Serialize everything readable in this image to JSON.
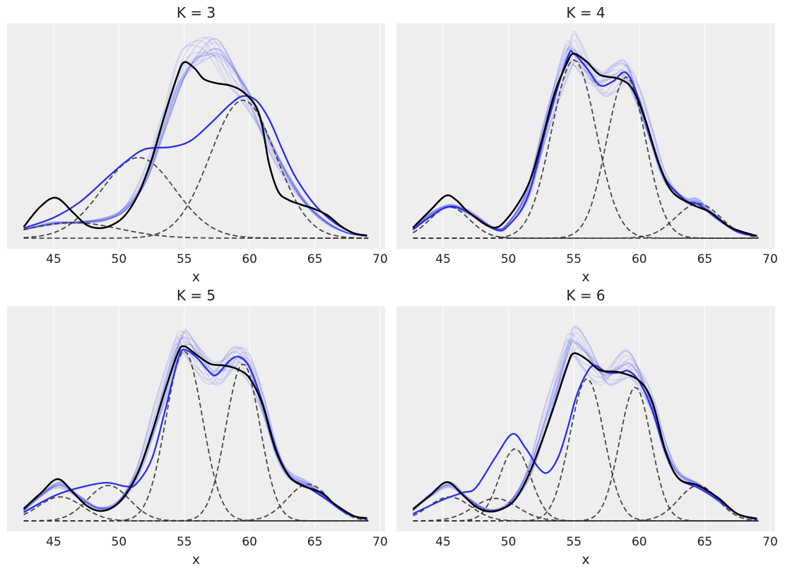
{
  "colors": {
    "background": "#eeeeee",
    "grid": "#ffffff",
    "mean": "#000000",
    "sample": "#2a2eec",
    "ensemble": "#2a2eec",
    "component": "#333333"
  },
  "chart_data": [
    {
      "type": "line",
      "title": "K = 3",
      "xlabel": "x",
      "ylabel": "",
      "xlim": [
        41.43,
        70.38
      ],
      "ylim": [
        -0.05,
        1.013
      ],
      "grid": "vertical",
      "xticks": [
        45,
        50,
        55,
        60,
        65,
        70
      ],
      "xtick_labels": [
        "45",
        "50",
        "55",
        "60",
        "65",
        "70"
      ],
      "yticks": [],
      "mean": [
        [
          42.7,
          0.053
        ],
        [
          44,
          0.15
        ],
        [
          45.2,
          0.19
        ],
        [
          46.5,
          0.12
        ],
        [
          47.5,
          0.063
        ],
        [
          48.5,
          0.047
        ],
        [
          49.5,
          0.063
        ],
        [
          50.5,
          0.11
        ],
        [
          51.5,
          0.21
        ],
        [
          52.5,
          0.37
        ],
        [
          53.5,
          0.58
        ],
        [
          54.5,
          0.77
        ],
        [
          55,
          0.83
        ],
        [
          55.8,
          0.8
        ],
        [
          56.5,
          0.75
        ],
        [
          57.5,
          0.73
        ],
        [
          58.5,
          0.72
        ],
        [
          59.5,
          0.69
        ],
        [
          60.5,
          0.62
        ],
        [
          61,
          0.52
        ],
        [
          61.5,
          0.35
        ],
        [
          62.2,
          0.22
        ],
        [
          63,
          0.18
        ],
        [
          64,
          0.157
        ],
        [
          65,
          0.137
        ],
        [
          66,
          0.107
        ],
        [
          67,
          0.057
        ],
        [
          68,
          0.023
        ],
        [
          69,
          0.013
        ]
      ],
      "sample": [
        [
          42.7,
          0.047
        ],
        [
          45,
          0.097
        ],
        [
          47,
          0.17
        ],
        [
          49,
          0.28
        ],
        [
          50.5,
          0.36
        ],
        [
          52,
          0.42
        ],
        [
          54,
          0.43
        ],
        [
          55.5,
          0.46
        ],
        [
          57,
          0.54
        ],
        [
          58.5,
          0.63
        ],
        [
          59.5,
          0.67
        ],
        [
          60.5,
          0.65
        ],
        [
          61.5,
          0.56
        ],
        [
          62.5,
          0.42
        ],
        [
          63.5,
          0.29
        ],
        [
          65,
          0.157
        ],
        [
          66.5,
          0.073
        ],
        [
          68,
          0.023
        ],
        [
          69,
          0.01
        ]
      ],
      "ensemble": [
        [
          42.7,
          0.04
        ],
        [
          45,
          0.07
        ],
        [
          47,
          0.075
        ],
        [
          49,
          0.09
        ],
        [
          50.5,
          0.14
        ],
        [
          52,
          0.28
        ],
        [
          53.5,
          0.55
        ],
        [
          55,
          0.8
        ],
        [
          56.5,
          0.88
        ],
        [
          57.5,
          0.88
        ],
        [
          58.5,
          0.8
        ],
        [
          60,
          0.65
        ],
        [
          61.5,
          0.45
        ],
        [
          63,
          0.28
        ],
        [
          64.5,
          0.15
        ],
        [
          66,
          0.07
        ],
        [
          67.5,
          0.025
        ],
        [
          69,
          0.01
        ]
      ],
      "components": [
        {
          "mean": 46.5,
          "peak": 0.073,
          "sd": 3.5
        },
        {
          "mean": 51.5,
          "peak": 0.38,
          "sd": 2.8
        },
        {
          "mean": 59.5,
          "peak": 0.65,
          "sd": 2.5
        }
      ]
    },
    {
      "type": "line",
      "title": "K = 4",
      "xlabel": "x",
      "ylabel": "",
      "xlim": [
        41.43,
        70.38
      ],
      "ylim": [
        -0.05,
        1.013
      ],
      "grid": "vertical",
      "xticks": [
        45,
        50,
        55,
        60,
        65,
        70
      ],
      "xtick_labels": [
        "45",
        "50",
        "55",
        "60",
        "65",
        "70"
      ],
      "yticks": [],
      "mean": [
        [
          42.7,
          0.05
        ],
        [
          44,
          0.13
        ],
        [
          45.2,
          0.2
        ],
        [
          46,
          0.18
        ],
        [
          47,
          0.12
        ],
        [
          48.8,
          0.05
        ],
        [
          50,
          0.1
        ],
        [
          51.5,
          0.25
        ],
        [
          52.5,
          0.45
        ],
        [
          53.5,
          0.68
        ],
        [
          54.5,
          0.83
        ],
        [
          55,
          0.87
        ],
        [
          56,
          0.83
        ],
        [
          57,
          0.77
        ],
        [
          58.5,
          0.75
        ],
        [
          59.5,
          0.7
        ],
        [
          60.5,
          0.55
        ],
        [
          61.5,
          0.35
        ],
        [
          62.5,
          0.22
        ],
        [
          64,
          0.16
        ],
        [
          65.5,
          0.12
        ],
        [
          67,
          0.05
        ],
        [
          69,
          0.01
        ]
      ],
      "sample": [
        [
          42.7,
          0.04
        ],
        [
          44,
          0.1
        ],
        [
          45.5,
          0.15
        ],
        [
          47,
          0.12
        ],
        [
          49,
          0.04
        ],
        [
          50,
          0.06
        ],
        [
          51.5,
          0.2
        ],
        [
          53,
          0.55
        ],
        [
          54.5,
          0.85
        ],
        [
          55,
          0.87
        ],
        [
          56,
          0.8
        ],
        [
          57,
          0.72
        ],
        [
          58,
          0.74
        ],
        [
          59,
          0.78
        ],
        [
          60,
          0.65
        ],
        [
          61,
          0.45
        ],
        [
          62,
          0.28
        ],
        [
          63.5,
          0.18
        ],
        [
          64.5,
          0.16
        ],
        [
          66,
          0.09
        ],
        [
          67.5,
          0.03
        ],
        [
          69,
          0.01
        ]
      ],
      "ensemble": [
        [
          42.7,
          0.045
        ],
        [
          44,
          0.11
        ],
        [
          45.5,
          0.15
        ],
        [
          47,
          0.12
        ],
        [
          49,
          0.045
        ],
        [
          50,
          0.07
        ],
        [
          51.5,
          0.22
        ],
        [
          53,
          0.56
        ],
        [
          54.5,
          0.86
        ],
        [
          55,
          0.88
        ],
        [
          56,
          0.8
        ],
        [
          57,
          0.73
        ],
        [
          58,
          0.76
        ],
        [
          59,
          0.78
        ],
        [
          60,
          0.64
        ],
        [
          61,
          0.45
        ],
        [
          62,
          0.28
        ],
        [
          63.5,
          0.18
        ],
        [
          64.5,
          0.17
        ],
        [
          66,
          0.09
        ],
        [
          67.5,
          0.03
        ],
        [
          69,
          0.01
        ]
      ],
      "components": [
        {
          "mean": 45.5,
          "peak": 0.147,
          "sd": 1.5
        },
        {
          "mean": 55,
          "peak": 0.84,
          "sd": 1.7
        },
        {
          "mean": 59,
          "peak": 0.76,
          "sd": 1.5
        },
        {
          "mean": 64.5,
          "peak": 0.163,
          "sd": 1.7
        }
      ]
    },
    {
      "type": "line",
      "title": "K = 5",
      "xlabel": "x",
      "ylabel": "",
      "xlim": [
        41.43,
        70.38
      ],
      "ylim": [
        -0.05,
        1.013
      ],
      "grid": "vertical",
      "xticks": [
        45,
        50,
        55,
        60,
        65,
        70
      ],
      "xtick_labels": [
        "45",
        "50",
        "55",
        "60",
        "65",
        "70"
      ],
      "yticks": [],
      "mean": [
        [
          42.7,
          0.057
        ],
        [
          44,
          0.13
        ],
        [
          45.3,
          0.197
        ],
        [
          46.5,
          0.133
        ],
        [
          47.5,
          0.073
        ],
        [
          48.5,
          0.047
        ],
        [
          49.5,
          0.063
        ],
        [
          50.5,
          0.123
        ],
        [
          51.5,
          0.233
        ],
        [
          52.5,
          0.41
        ],
        [
          53.5,
          0.61
        ],
        [
          54.5,
          0.79
        ],
        [
          55,
          0.823
        ],
        [
          56,
          0.78
        ],
        [
          57,
          0.74
        ],
        [
          58,
          0.733
        ],
        [
          59,
          0.717
        ],
        [
          60,
          0.673
        ],
        [
          61,
          0.547
        ],
        [
          62,
          0.333
        ],
        [
          63,
          0.213
        ],
        [
          64,
          0.167
        ],
        [
          65.5,
          0.133
        ],
        [
          66.5,
          0.08
        ],
        [
          68,
          0.023
        ],
        [
          69,
          0.013
        ]
      ],
      "sample": [
        [
          42.7,
          0.04
        ],
        [
          45,
          0.117
        ],
        [
          47,
          0.157
        ],
        [
          49,
          0.18
        ],
        [
          50.5,
          0.163
        ],
        [
          51.3,
          0.173
        ],
        [
          52.5,
          0.29
        ],
        [
          53.5,
          0.513
        ],
        [
          54.5,
          0.757
        ],
        [
          55,
          0.807
        ],
        [
          56,
          0.767
        ],
        [
          57,
          0.697
        ],
        [
          57.5,
          0.69
        ],
        [
          58.5,
          0.757
        ],
        [
          59.2,
          0.773
        ],
        [
          60,
          0.723
        ],
        [
          61,
          0.557
        ],
        [
          62,
          0.347
        ],
        [
          63,
          0.213
        ],
        [
          64.5,
          0.157
        ],
        [
          66,
          0.097
        ],
        [
          67.5,
          0.033
        ],
        [
          69,
          0.007
        ]
      ],
      "ensemble": [
        [
          42.7,
          0.05
        ],
        [
          44,
          0.12
        ],
        [
          45.5,
          0.17
        ],
        [
          47,
          0.11
        ],
        [
          48.5,
          0.06
        ],
        [
          50,
          0.09
        ],
        [
          51.5,
          0.24
        ],
        [
          53,
          0.52
        ],
        [
          54.5,
          0.82
        ],
        [
          55,
          0.85
        ],
        [
          56,
          0.78
        ],
        [
          57.3,
          0.69
        ],
        [
          58.5,
          0.75
        ],
        [
          59.2,
          0.77
        ],
        [
          60,
          0.72
        ],
        [
          61,
          0.55
        ],
        [
          62,
          0.34
        ],
        [
          63,
          0.22
        ],
        [
          64.5,
          0.17
        ],
        [
          66,
          0.1
        ],
        [
          67.5,
          0.033
        ],
        [
          69,
          0.008
        ]
      ],
      "components": [
        {
          "mean": 45.5,
          "peak": 0.113,
          "sd": 1.7
        },
        {
          "mean": 49.2,
          "peak": 0.167,
          "sd": 1.6
        },
        {
          "mean": 55,
          "peak": 0.8,
          "sd": 1.4
        },
        {
          "mean": 59.5,
          "peak": 0.74,
          "sd": 1.3
        },
        {
          "mean": 64.5,
          "peak": 0.173,
          "sd": 1.6
        }
      ]
    },
    {
      "type": "line",
      "title": "K = 6",
      "xlabel": "x",
      "ylabel": "",
      "xlim": [
        41.43,
        70.38
      ],
      "ylim": [
        -0.05,
        1.013
      ],
      "grid": "vertical",
      "xticks": [
        45,
        50,
        55,
        60,
        65,
        70
      ],
      "xtick_labels": [
        "45",
        "50",
        "55",
        "60",
        "65",
        "70"
      ],
      "yticks": [],
      "mean": [
        [
          42.7,
          0.056
        ],
        [
          44,
          0.12
        ],
        [
          45.3,
          0.183
        ],
        [
          46.5,
          0.122
        ],
        [
          47.5,
          0.067
        ],
        [
          48.5,
          0.044
        ],
        [
          49.5,
          0.056
        ],
        [
          50.5,
          0.1
        ],
        [
          51.5,
          0.21
        ],
        [
          52.5,
          0.367
        ],
        [
          53.5,
          0.544
        ],
        [
          54.5,
          0.733
        ],
        [
          55,
          0.79
        ],
        [
          56,
          0.76
        ],
        [
          57,
          0.71
        ],
        [
          58.5,
          0.7
        ],
        [
          60,
          0.66
        ],
        [
          61,
          0.56
        ],
        [
          62,
          0.33
        ],
        [
          63,
          0.2
        ],
        [
          64.5,
          0.167
        ],
        [
          66,
          0.11
        ],
        [
          67.5,
          0.033
        ],
        [
          69,
          0.011
        ]
      ],
      "sample": [
        [
          42.7,
          0.033
        ],
        [
          45,
          0.1
        ],
        [
          46.5,
          0.133
        ],
        [
          47.5,
          0.156
        ],
        [
          49,
          0.3
        ],
        [
          50.3,
          0.41
        ],
        [
          51.3,
          0.344
        ],
        [
          52.3,
          0.25
        ],
        [
          53,
          0.228
        ],
        [
          53.8,
          0.3
        ],
        [
          54.5,
          0.433
        ],
        [
          55.2,
          0.589
        ],
        [
          56,
          0.7
        ],
        [
          56.6,
          0.733
        ],
        [
          57.5,
          0.7
        ],
        [
          58.5,
          0.7
        ],
        [
          59.2,
          0.706
        ],
        [
          60,
          0.656
        ],
        [
          61,
          0.52
        ],
        [
          62,
          0.322
        ],
        [
          63,
          0.2
        ],
        [
          64.5,
          0.156
        ],
        [
          66,
          0.1
        ],
        [
          67.5,
          0.033
        ],
        [
          69,
          0.006
        ]
      ],
      "ensemble": [
        [
          42.7,
          0.05
        ],
        [
          44,
          0.12
        ],
        [
          45.5,
          0.17
        ],
        [
          47,
          0.1
        ],
        [
          48.5,
          0.05
        ],
        [
          50,
          0.08
        ],
        [
          51.5,
          0.22
        ],
        [
          53,
          0.5
        ],
        [
          54.5,
          0.8
        ],
        [
          55,
          0.85
        ],
        [
          56,
          0.78
        ],
        [
          57.3,
          0.68
        ],
        [
          58.5,
          0.72
        ],
        [
          59.2,
          0.74
        ],
        [
          60,
          0.68
        ],
        [
          61,
          0.54
        ],
        [
          62,
          0.34
        ],
        [
          63,
          0.22
        ],
        [
          64.5,
          0.17
        ],
        [
          66,
          0.1
        ],
        [
          67.5,
          0.033
        ],
        [
          69,
          0.008
        ]
      ],
      "components": [
        {
          "mean": 45.5,
          "peak": 0.113,
          "sd": 1.6
        },
        {
          "mean": 49,
          "peak": 0.106,
          "sd": 1.7
        },
        {
          "mean": 50.5,
          "peak": 0.34,
          "sd": 1.2
        },
        {
          "mean": 56,
          "peak": 0.67,
          "sd": 1.3
        },
        {
          "mean": 59.7,
          "peak": 0.63,
          "sd": 1.2
        },
        {
          "mean": 64.5,
          "peak": 0.167,
          "sd": 1.5
        }
      ]
    }
  ]
}
